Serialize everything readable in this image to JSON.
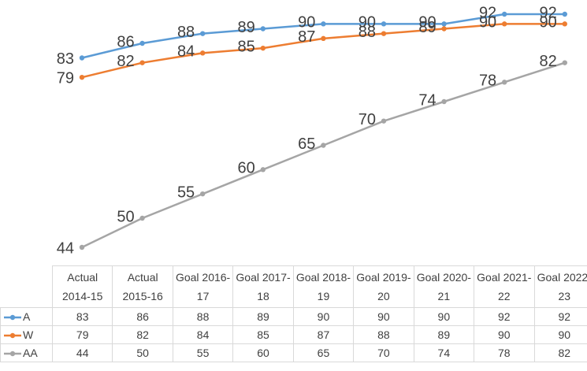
{
  "chart_data": {
    "type": "line",
    "categories": [
      "Actual 2014-15",
      "Actual 2015-16",
      "Goal 2016-17",
      "Goal 2017-18",
      "Goal 2018-19",
      "Goal 2019-20",
      "Goal 2020-21",
      "Goal 2021-22",
      "Goal 2022-23"
    ],
    "series": [
      {
        "name": "A",
        "color": "#5b9bd5",
        "values": [
          83,
          86,
          88,
          89,
          90,
          90,
          90,
          92,
          92
        ]
      },
      {
        "name": "W",
        "color": "#ed7d31",
        "values": [
          79,
          82,
          84,
          85,
          87,
          88,
          89,
          90,
          90
        ]
      },
      {
        "name": "AA",
        "color": "#a5a5a5",
        "values": [
          44,
          50,
          55,
          60,
          65,
          70,
          74,
          78,
          82
        ]
      }
    ]
  }
}
